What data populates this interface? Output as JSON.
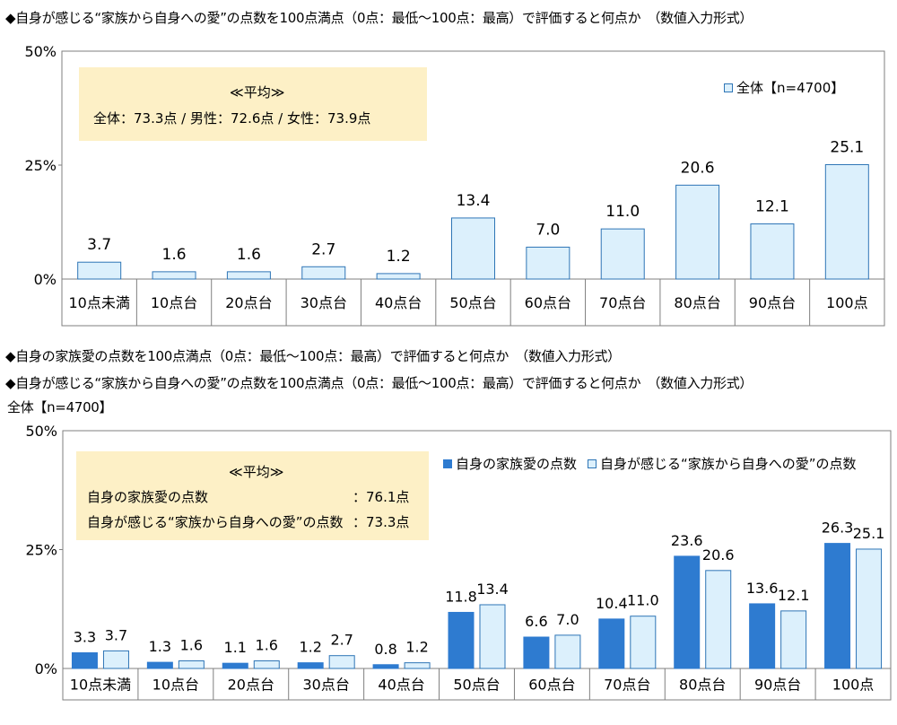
{
  "top": {
    "title": "◆自身が感じる“家族から自身への愛”の点数を100点満点（0点：最低～100点：最高）で評価すると何点か　（数値入力形式）",
    "note": {
      "heading": "≪平均≫",
      "line": "全体：73.3点 / 男性：72.6点 / 女性：73.9点"
    },
    "legend_label": "全体【n=4700】"
  },
  "bottom": {
    "title_line1": "◆自身の家族愛の点数を100点満点（0点：最低～100点：最高）で評価すると何点か　（数値入力形式）",
    "title_line2": "◆自身が感じる“家族から自身への愛”の点数を100点満点（0点：最低～100点：最高）で評価すると何点か　（数値入力形式）",
    "subtitle": "全体【n=4700】",
    "note": {
      "heading": "≪平均≫",
      "row1_label": "自身の家族愛の点数",
      "row1_value": "：76.1点",
      "row2_label": "自身が感じる“家族から自身への愛”の点数",
      "row2_value": "：73.3点"
    }
  },
  "colors": {
    "light_fill": "#dcf0fc",
    "light_stroke": "#2e75b6",
    "dark_fill": "#2e7bd0",
    "note_bg": "#fdf0c6",
    "grid": "#7f7f7f"
  },
  "chart_data": [
    {
      "type": "bar",
      "categories": [
        "10点未満",
        "10点台",
        "20点台",
        "30点台",
        "40点台",
        "50点台",
        "60点台",
        "70点台",
        "80点台",
        "90点台",
        "100点"
      ],
      "series": [
        {
          "name": "全体【n=4700】",
          "values": [
            3.7,
            1.6,
            1.6,
            2.7,
            1.2,
            13.4,
            7.0,
            11.0,
            20.6,
            12.1,
            25.1
          ]
        }
      ],
      "ylim": [
        0,
        50
      ],
      "yticks": [
        "0%",
        "25%",
        "50%"
      ],
      "grid": false,
      "legend": "top-right"
    },
    {
      "type": "bar",
      "categories": [
        "10点未満",
        "10点台",
        "20点台",
        "30点台",
        "40点台",
        "50点台",
        "60点台",
        "70点台",
        "80点台",
        "90点台",
        "100点"
      ],
      "series": [
        {
          "name": "自身の家族愛の点数",
          "values": [
            3.3,
            1.3,
            1.1,
            1.2,
            0.8,
            11.8,
            6.6,
            10.4,
            23.6,
            13.6,
            26.3
          ]
        },
        {
          "name": "自身が感じる“家族から自身への愛”の点数",
          "values": [
            3.7,
            1.6,
            1.6,
            2.7,
            1.2,
            13.4,
            7.0,
            11.0,
            20.6,
            12.1,
            25.1
          ]
        }
      ],
      "ylim": [
        0,
        50
      ],
      "yticks": [
        "0%",
        "25%",
        "50%"
      ],
      "grid": false,
      "legend": "top-right"
    }
  ]
}
